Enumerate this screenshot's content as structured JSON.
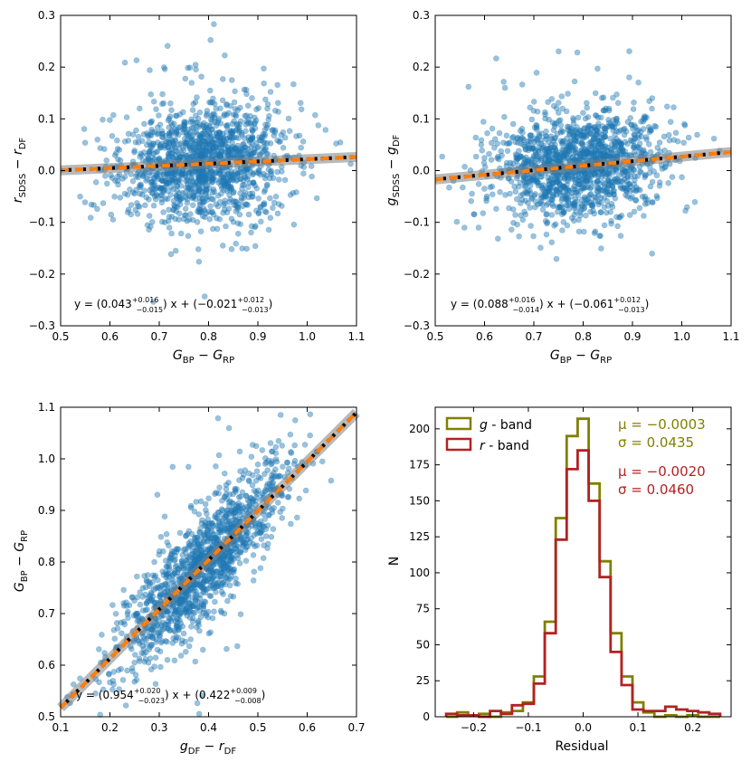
{
  "chart_data": [
    {
      "type": "scatter",
      "xlabel": "G_BP − G_RP",
      "ylabel": "r_SDSS − r_DF",
      "xlim": [
        0.5,
        1.1
      ],
      "ylim": [
        -0.3,
        0.3
      ],
      "xticks": [
        0.5,
        0.6,
        0.7,
        0.8,
        0.9,
        1.0,
        1.1
      ],
      "yticks": [
        -0.3,
        -0.2,
        -0.1,
        0.0,
        0.1,
        0.2,
        0.3
      ],
      "xtick_labels": [
        "0.5",
        "0.6",
        "0.7",
        "0.8",
        "0.9",
        "1.0",
        "1.1"
      ],
      "ytick_labels": [
        "−0.3",
        "−0.2",
        "−0.1",
        "0.0",
        "0.1",
        "0.2",
        "0.3"
      ],
      "fit": {
        "slope": 0.043,
        "intercept": -0.021
      },
      "annotation": {
        "prefix": "y = (0.043",
        "slope_up": "+0.016",
        "slope_down": "−0.015",
        "mid": ") x + (−0.021",
        "int_up": "+0.012",
        "int_down": "−0.013",
        "suffix": ")"
      },
      "scatter_model": {
        "n_points": 1400,
        "x_center": 0.79,
        "x_spread": 0.085,
        "y_spread": 0.055,
        "seed": 11
      }
    },
    {
      "type": "scatter",
      "xlabel": "G_BP − G_RP",
      "ylabel": "g_SDSS − g_DF",
      "xlim": [
        0.5,
        1.1
      ],
      "ylim": [
        -0.3,
        0.3
      ],
      "xticks": [
        0.5,
        0.6,
        0.7,
        0.8,
        0.9,
        1.0,
        1.1
      ],
      "yticks": [
        -0.3,
        -0.2,
        -0.1,
        0.0,
        0.1,
        0.2,
        0.3
      ],
      "xtick_labels": [
        "0.5",
        "0.6",
        "0.7",
        "0.8",
        "0.9",
        "1.0",
        "1.1"
      ],
      "ytick_labels": [
        "−0.3",
        "−0.2",
        "−0.1",
        "0.0",
        "0.1",
        "0.2",
        "0.3"
      ],
      "fit": {
        "slope": 0.088,
        "intercept": -0.061
      },
      "annotation": {
        "prefix": "y = (0.088",
        "slope_up": "+0.016",
        "slope_down": "−0.014",
        "mid": ") x + (−0.061",
        "int_up": "+0.012",
        "int_down": "−0.013",
        "suffix": ")"
      },
      "scatter_model": {
        "n_points": 1400,
        "x_center": 0.79,
        "x_spread": 0.085,
        "y_spread": 0.05,
        "seed": 23
      }
    },
    {
      "type": "scatter",
      "xlabel": "g_DF − r_DF",
      "ylabel": "G_BP − G_RP",
      "xlim": [
        0.1,
        0.7
      ],
      "ylim": [
        0.5,
        1.1
      ],
      "xticks": [
        0.1,
        0.2,
        0.3,
        0.4,
        0.5,
        0.6,
        0.7
      ],
      "yticks": [
        0.5,
        0.6,
        0.7,
        0.8,
        0.9,
        1.0,
        1.1
      ],
      "xtick_labels": [
        "0.1",
        "0.2",
        "0.3",
        "0.4",
        "0.5",
        "0.6",
        "0.7"
      ],
      "ytick_labels": [
        "0.5",
        "0.6",
        "0.7",
        "0.8",
        "0.9",
        "1.0",
        "1.1"
      ],
      "fit": {
        "slope": 0.954,
        "intercept": 0.422
      },
      "annotation": {
        "prefix": "y = (0.954",
        "slope_up": "+0.020",
        "slope_down": "−0.023",
        "mid": ") x + (0.422",
        "int_up": "+0.009",
        "int_down": "−0.008",
        "suffix": ")"
      },
      "scatter_model": {
        "n_points": 1400,
        "x_center": 0.39,
        "x_spread": 0.085,
        "y_spread": 0.05,
        "seed": 37
      }
    },
    {
      "type": "histogram",
      "xlabel": "Residual",
      "ylabel": "N",
      "xlim": [
        -0.27,
        0.27
      ],
      "ylim": [
        0,
        215
      ],
      "xticks": [
        -0.2,
        -0.1,
        0.0,
        0.1,
        0.2
      ],
      "yticks": [
        0,
        25,
        50,
        75,
        100,
        125,
        150,
        175,
        200
      ],
      "xtick_labels": [
        "−0.2",
        "−0.1",
        "0.0",
        "0.1",
        "0.2"
      ],
      "ytick_labels": [
        "0",
        "25",
        "50",
        "75",
        "100",
        "125",
        "150",
        "175",
        "200"
      ],
      "bin_edges": [
        -0.25,
        -0.23,
        -0.21,
        -0.19,
        -0.17,
        -0.15,
        -0.13,
        -0.11,
        -0.09,
        -0.07,
        -0.05,
        -0.03,
        -0.01,
        0.01,
        0.03,
        0.05,
        0.07,
        0.09,
        0.11,
        0.13,
        0.15,
        0.17,
        0.19,
        0.21,
        0.23,
        0.25
      ],
      "series": [
        {
          "name": "g - band",
          "color": "#808000",
          "counts": [
            0,
            3,
            1,
            2,
            0,
            3,
            4,
            10,
            28,
            66,
            138,
            195,
            207,
            162,
            108,
            58,
            28,
            10,
            3,
            0,
            1,
            0,
            1,
            0,
            0
          ]
        },
        {
          "name": "r - band",
          "color": "#b22222",
          "counts": [
            2,
            1,
            1,
            0,
            4,
            2,
            8,
            9,
            23,
            58,
            123,
            172,
            185,
            150,
            97,
            45,
            22,
            5,
            4,
            4,
            7,
            5,
            4,
            3,
            2
          ]
        }
      ],
      "legend": [
        {
          "symbol": "g",
          "label": " - band",
          "color": "#808000"
        },
        {
          "symbol": "r",
          "label": " - band",
          "color": "#b22222"
        }
      ],
      "stats": [
        {
          "line1": "μ = −0.0003",
          "line2": "σ = 0.0435",
          "color": "#808000"
        },
        {
          "line1": "μ = −0.0020",
          "line2": "σ = 0.0460",
          "color": "#b22222"
        }
      ]
    }
  ],
  "colors": {
    "points": "#1f77b4",
    "fit_dash": "#ff7f0e",
    "fit_base": "#000000",
    "band": "#808080"
  }
}
